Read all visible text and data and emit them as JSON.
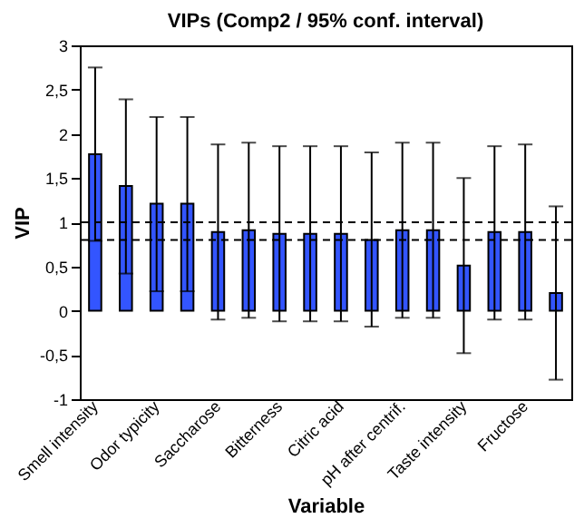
{
  "chart_data": {
    "type": "bar",
    "title": "VIPs (Comp2 / 95% conf. interval)",
    "xlabel": "Variable",
    "ylabel": "VIP",
    "categories": [
      "Smell intensity",
      null,
      "Odor typicity",
      null,
      "Saccharose",
      null,
      "Bitterness",
      null,
      "Citric acid",
      null,
      "pH after centrif.",
      null,
      "Taste intensity",
      null,
      "Fructose",
      null
    ],
    "values": [
      1.77,
      1.41,
      1.21,
      1.21,
      0.89,
      0.91,
      0.87,
      0.87,
      0.87,
      0.8,
      0.91,
      0.91,
      0.51,
      0.89,
      0.89,
      0.2
    ],
    "errors": [
      [
        0.79,
        2.75
      ],
      [
        0.42,
        2.39
      ],
      [
        0.22,
        2.19
      ],
      [
        0.22,
        2.19
      ],
      [
        -0.1,
        1.88
      ],
      [
        -0.08,
        1.9
      ],
      [
        -0.12,
        1.86
      ],
      [
        -0.12,
        1.86
      ],
      [
        -0.12,
        1.86
      ],
      [
        -0.18,
        1.79
      ],
      [
        -0.08,
        1.9
      ],
      [
        -0.08,
        1.9
      ],
      [
        -0.48,
        1.5
      ],
      [
        -0.1,
        1.86
      ],
      [
        -0.1,
        1.88
      ],
      [
        -0.78,
        1.18
      ]
    ],
    "color": "#3355ff",
    "ylim": [
      -1,
      3
    ],
    "yticks": [
      {
        "value": -1,
        "label": "-1"
      },
      {
        "value": -0.5,
        "label": "-0,5"
      },
      {
        "value": 0,
        "label": "0"
      },
      {
        "value": 0.5,
        "label": "0,5"
      },
      {
        "value": 1,
        "label": "1"
      },
      {
        "value": 1.5,
        "label": "1,5"
      },
      {
        "value": 2,
        "label": "2"
      },
      {
        "value": 2.5,
        "label": "2,5"
      },
      {
        "value": 3,
        "label": "3"
      }
    ],
    "ref_lines": [
      {
        "axis": "y",
        "value": 1,
        "line_style": "dashed"
      },
      {
        "axis": "y",
        "value": 0.8,
        "line_style": "dashed"
      }
    ],
    "grid": false
  }
}
